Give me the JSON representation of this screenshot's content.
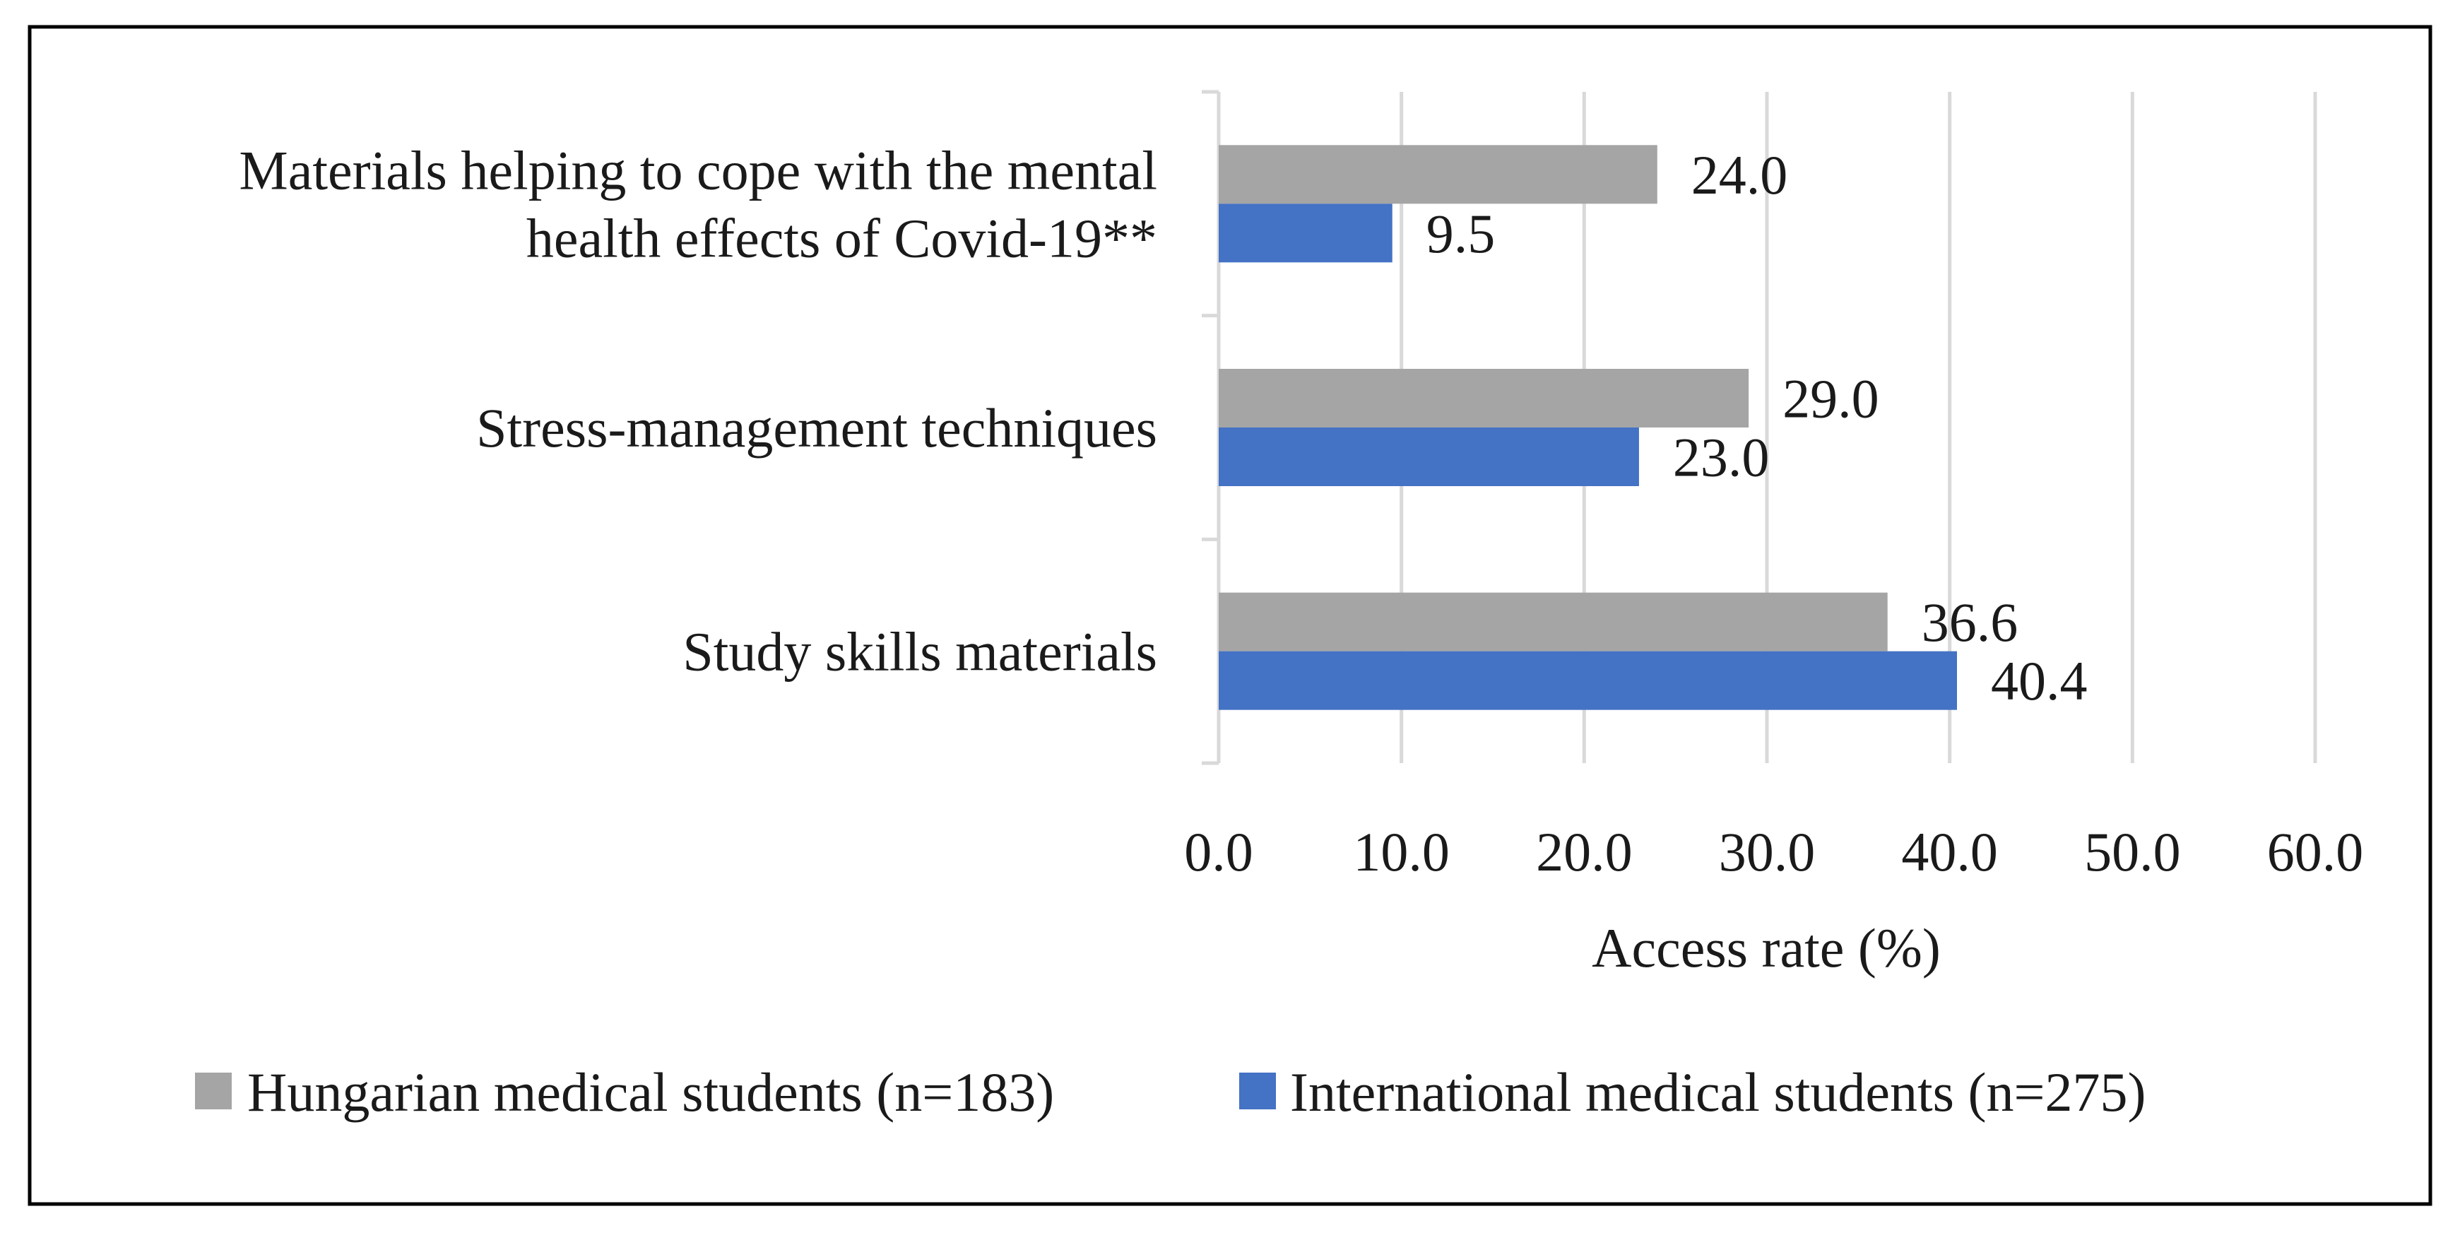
{
  "chart_data": {
    "type": "bar",
    "orientation": "horizontal",
    "title": "",
    "categories": [
      [
        "Materials helping to cope with the mental",
        "health effects of Covid-19**"
      ],
      [
        "Stress-management techniques"
      ],
      [
        "Study skills materials"
      ]
    ],
    "series": [
      {
        "name": "Hungarian medical students (n=183)",
        "color": "#a5a5a5",
        "values": [
          24.0,
          29.0,
          36.6
        ]
      },
      {
        "name": "International medical students (n=275)",
        "color": "#4472c4",
        "values": [
          9.5,
          23.0,
          40.4
        ]
      }
    ],
    "xlabel": "Access rate (%)",
    "ylabel": "",
    "xlim": [
      0,
      60
    ],
    "xticks": [
      0,
      10,
      20,
      30,
      40,
      50,
      60
    ],
    "tick_format_decimals": 1,
    "grid": true,
    "legend_position": "bottom"
  }
}
